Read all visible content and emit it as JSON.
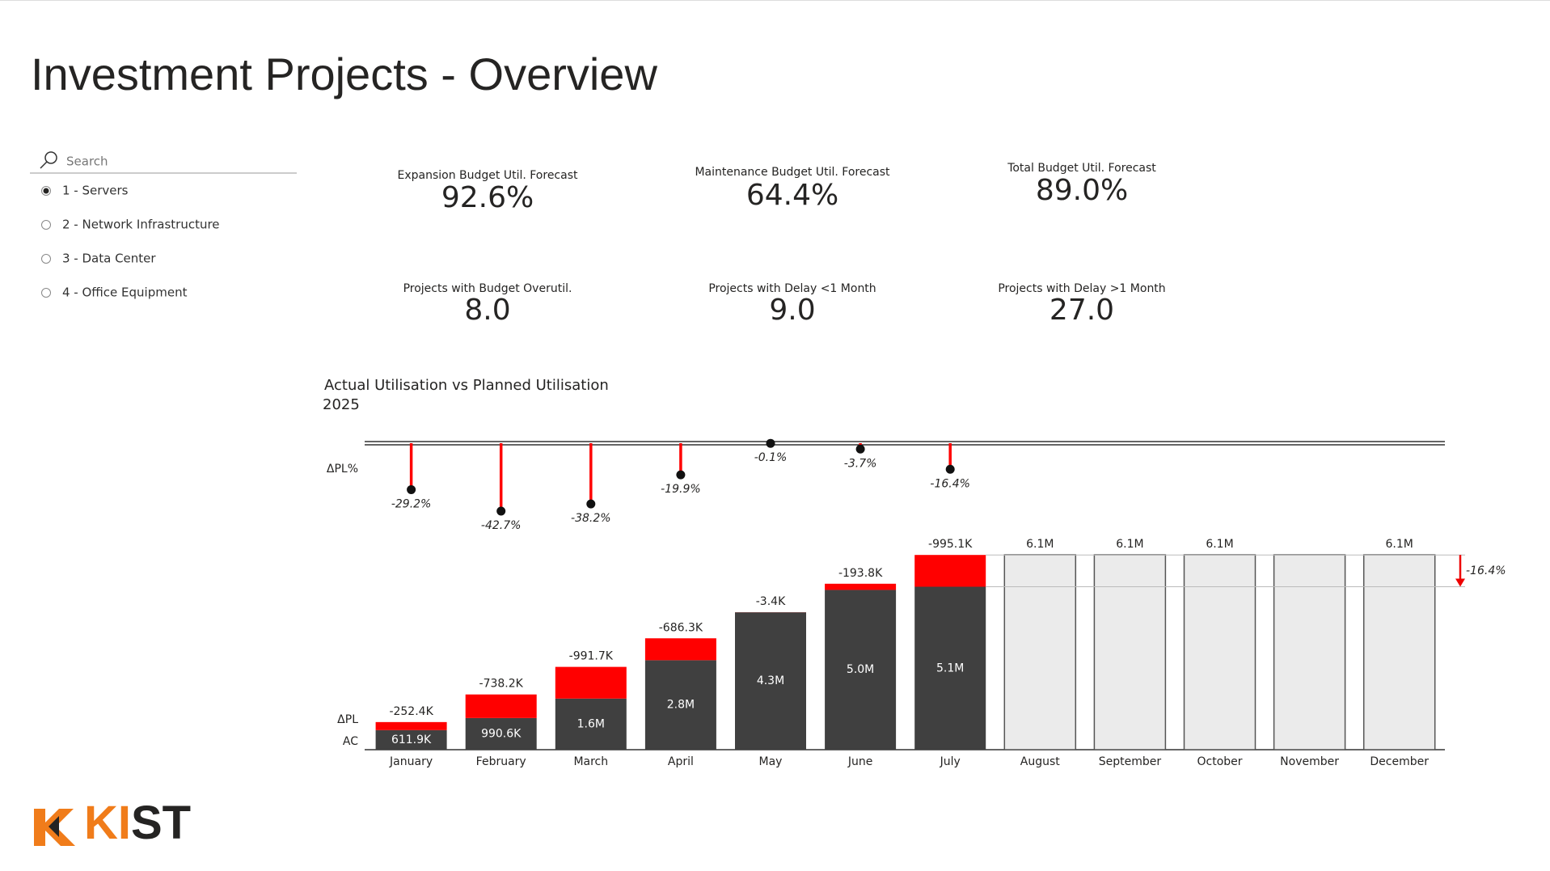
{
  "header": {
    "title": "Investment Projects - Overview"
  },
  "slicer": {
    "search": "Search",
    "items": [
      "1 - Servers",
      "2 - Network Infrastructure",
      "3 - Data Center",
      "4 - Office Equipment"
    ],
    "selected": 0
  },
  "kpis": [
    {
      "label": "Expansion Budget Util. Forecast",
      "value": "92.6%"
    },
    {
      "label": "Maintenance Budget Util. Forecast",
      "value": "64.4%"
    },
    {
      "label": "Total Budget Util. Forecast",
      "value": "89.0%"
    },
    {
      "label": "Projects with Budget Overutil.",
      "value": "8.0"
    },
    {
      "label": "Projects with Delay <1 Month",
      "value": "9.0"
    },
    {
      "label": "Projects with Delay >1 Month",
      "value": "27.0"
    }
  ],
  "chart_data": {
    "type": "variance",
    "title": "Actual Utilisation vs Planned Utilisation",
    "subtitle": "2025",
    "categories": [
      "January",
      "February",
      "March",
      "April",
      "May",
      "June",
      "July",
      "August",
      "September",
      "October",
      "November",
      "December"
    ],
    "series": [
      {
        "name": "AC",
        "color": "#404040",
        "values": [
          611900,
          990600,
          1600000,
          2800000,
          4300000,
          5000000,
          5100000,
          null,
          null,
          null,
          null,
          null
        ],
        "value_labels": [
          "611.9K",
          "990.6K",
          "1.6M",
          "2.8M",
          "4.3M",
          "5.0M",
          "5.1M",
          null,
          null,
          null,
          null,
          null
        ]
      },
      {
        "name": "ΔPL",
        "color": "#ff0000",
        "values": [
          -252400,
          -738200,
          -991700,
          -686300,
          -3400,
          -193800,
          -995100,
          null,
          null,
          null,
          null,
          null
        ],
        "value_labels": [
          "-252.4K",
          "-738.2K",
          "-991.7K",
          "-686.3K",
          "-3.4K",
          "-193.8K",
          "-995.1K",
          null,
          null,
          null,
          null,
          null
        ]
      },
      {
        "color": "#ebebeb",
        "values": [
          null,
          null,
          null,
          null,
          null,
          null,
          null,
          6100000,
          6100000,
          6100000,
          6100000,
          6100000
        ],
        "value_labels": [
          null,
          null,
          null,
          null,
          null,
          null,
          null,
          "6.1M",
          "6.1M",
          "6.1M",
          null,
          "6.1M"
        ]
      }
    ],
    "delta_percent": {
      "name": "ΔPL%",
      "color": "#ff0000",
      "values": [
        -29.2,
        -42.7,
        -38.2,
        -19.9,
        -0.1,
        -3.7,
        -16.4,
        null,
        null,
        null,
        null,
        null
      ],
      "value_labels": [
        "-29.2%",
        "-42.7%",
        "-38.2%",
        "-19.9%",
        "-0.1%",
        "-3.7%",
        "-16.4%",
        null,
        null,
        null,
        null,
        null
      ]
    },
    "total": {
      "value": -16.4,
      "label": "-16.4%"
    }
  },
  "logo": {
    "accent": "KI",
    "rest": "ST"
  }
}
